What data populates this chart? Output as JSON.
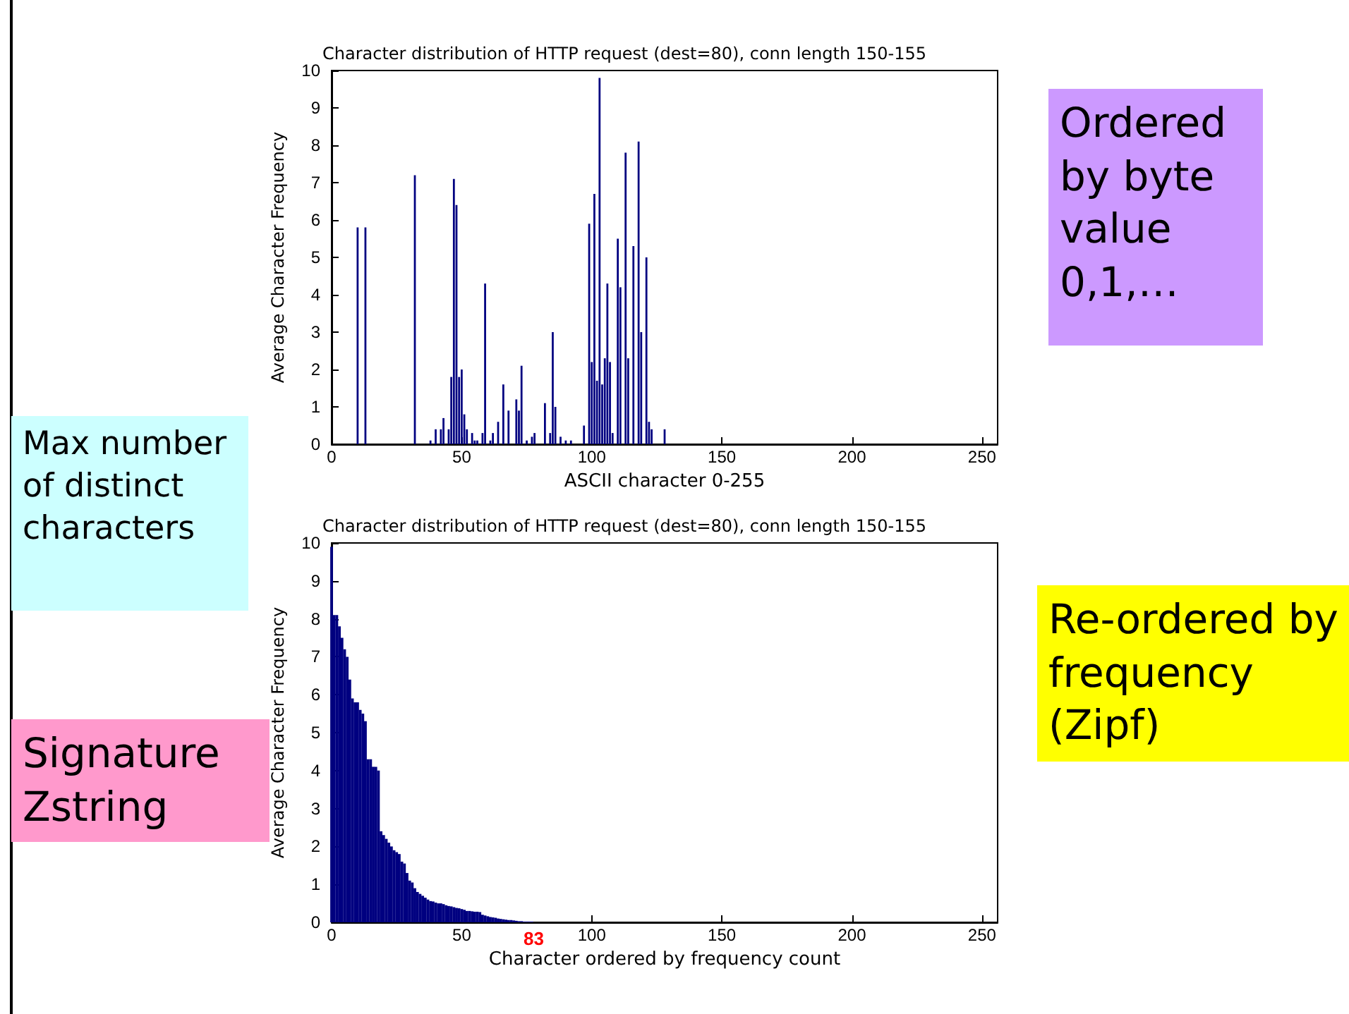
{
  "chart_data": [
    {
      "type": "bar",
      "title": "Character distribution of HTTP request (dest=80), conn length 150-155",
      "xlabel": "ASCII character 0-255",
      "ylabel": "Average Character Frequency",
      "color": "#000080",
      "x": [
        10,
        13,
        32,
        38,
        40,
        42,
        43,
        45,
        46,
        47,
        48,
        49,
        50,
        51,
        52,
        54,
        55,
        56,
        58,
        59,
        61,
        62,
        64,
        66,
        68,
        71,
        72,
        73,
        75,
        77,
        78,
        82,
        84,
        85,
        86,
        88,
        90,
        92,
        97,
        99,
        100,
        101,
        102,
        103,
        104,
        105,
        106,
        107,
        108,
        110,
        111,
        113,
        114,
        116,
        118,
        119,
        121,
        122,
        123,
        128
      ],
      "values": [
        5.8,
        5.8,
        7.2,
        0.1,
        0.4,
        0.4,
        0.7,
        0.4,
        1.8,
        7.1,
        6.4,
        1.8,
        2.0,
        0.8,
        0.4,
        0.3,
        0.1,
        0.1,
        0.3,
        4.3,
        0.1,
        0.3,
        0.6,
        1.6,
        0.9,
        1.2,
        0.9,
        2.1,
        0.1,
        0.2,
        0.3,
        1.1,
        0.3,
        3.0,
        1.0,
        0.2,
        0.1,
        0.1,
        0.5,
        5.9,
        2.2,
        6.7,
        1.7,
        9.8,
        1.6,
        2.3,
        4.3,
        2.2,
        0.3,
        5.5,
        4.2,
        7.8,
        2.3,
        5.3,
        8.1,
        3.0,
        5.0,
        0.6,
        0.4,
        0.4
      ],
      "xlim": [
        0,
        256
      ],
      "xticks": [
        0,
        50,
        100,
        150,
        200,
        250
      ],
      "ylim": [
        0,
        10
      ],
      "yticks": [
        0,
        1,
        2,
        3,
        4,
        5,
        6,
        7,
        8,
        9,
        10
      ],
      "grid": false,
      "annotations": [
        "Ordered by byte value 0,1,…"
      ]
    },
    {
      "type": "bar",
      "title": "Character distribution of HTTP request (dest=80), conn length 150-155",
      "xlabel": "Character ordered by frequency count",
      "ylabel": "Average Character Frequency",
      "color": "#000080",
      "x": [
        0,
        1,
        2,
        3,
        4,
        5,
        6,
        7,
        8,
        9,
        10,
        11,
        12,
        13,
        14,
        15,
        16,
        17,
        18,
        19,
        20,
        21,
        22,
        23,
        24,
        25,
        26,
        27,
        28,
        29,
        30,
        31,
        32,
        33,
        34,
        35,
        36,
        37,
        38,
        39,
        40,
        41,
        42,
        43,
        44,
        45,
        46,
        47,
        48,
        49,
        50,
        51,
        52,
        53,
        54,
        55,
        56,
        57,
        58,
        59,
        60,
        61,
        62,
        63,
        64,
        65,
        66,
        67,
        68,
        69,
        70,
        71,
        72,
        73,
        74,
        75,
        76,
        77
      ],
      "values": [
        9.9,
        8.1,
        8.1,
        7.8,
        7.5,
        7.2,
        7.0,
        6.4,
        5.9,
        5.8,
        5.8,
        5.6,
        5.5,
        5.3,
        4.3,
        4.3,
        4.1,
        4.1,
        4.0,
        2.4,
        2.3,
        2.2,
        2.1,
        2.0,
        1.9,
        1.85,
        1.8,
        1.6,
        1.55,
        1.3,
        1.1,
        1.05,
        0.9,
        0.8,
        0.75,
        0.7,
        0.65,
        0.6,
        0.56,
        0.55,
        0.52,
        0.5,
        0.5,
        0.48,
        0.45,
        0.43,
        0.42,
        0.4,
        0.38,
        0.37,
        0.35,
        0.33,
        0.3,
        0.3,
        0.29,
        0.28,
        0.28,
        0.27,
        0.2,
        0.18,
        0.16,
        0.14,
        0.13,
        0.12,
        0.1,
        0.09,
        0.08,
        0.07,
        0.06,
        0.06,
        0.05,
        0.04,
        0.03,
        0.03,
        0.02,
        0.02,
        0.02,
        0.02
      ],
      "xlim": [
        0,
        256
      ],
      "xticks": [
        0,
        50,
        100,
        150,
        200,
        250
      ],
      "ylim": [
        0,
        10
      ],
      "yticks": [
        0,
        1,
        2,
        3,
        4,
        5,
        6,
        7,
        8,
        9,
        10
      ],
      "grid": false,
      "annotations": [
        "83",
        "Max number of distinct characters",
        "Re-ordered by frequency (Zipf)",
        "Signature Zstring"
      ]
    }
  ]
}
